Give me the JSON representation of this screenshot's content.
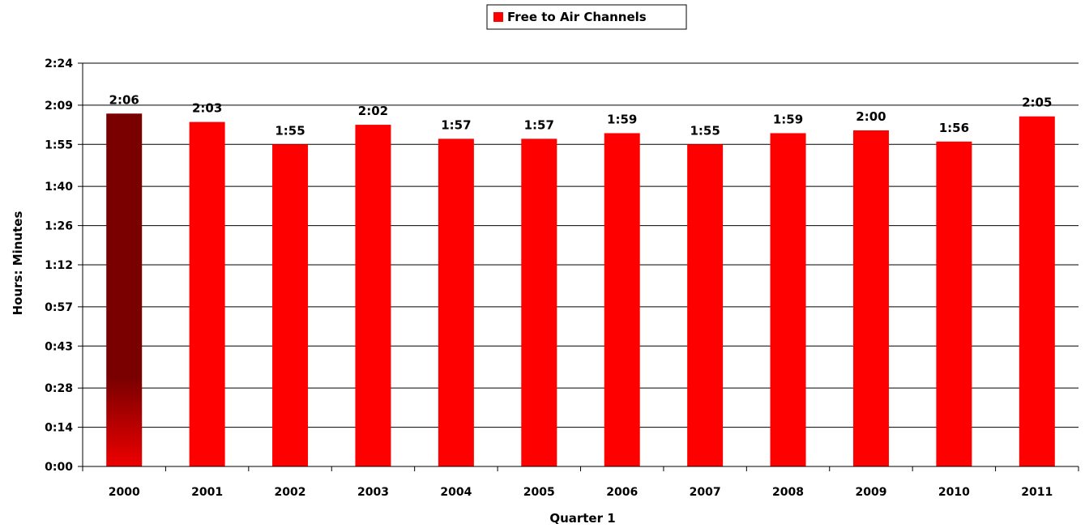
{
  "chart_data": {
    "type": "bar",
    "title": "",
    "xlabel": "Quarter 1",
    "ylabel": "Hours: Minutes",
    "legend": {
      "label": "Free to Air Channels",
      "position": "top-center"
    },
    "categories": [
      "2000",
      "2001",
      "2002",
      "2003",
      "2004",
      "2005",
      "2006",
      "2007",
      "2008",
      "2009",
      "2010",
      "2011"
    ],
    "series": [
      {
        "name": "Free to Air Channels",
        "values_minutes": [
          126,
          123,
          115,
          122,
          117,
          117,
          119,
          115,
          119,
          120,
          116,
          125
        ],
        "labels": [
          "2:06",
          "2:03",
          "1:55",
          "2:02",
          "1:57",
          "1:57",
          "1:59",
          "1:55",
          "1:59",
          "2:00",
          "1:56",
          "2:05"
        ]
      }
    ],
    "ylim_minutes": [
      0,
      144
    ],
    "y_ticks_minutes": [
      0,
      14,
      28,
      43,
      57,
      72,
      86,
      100,
      115,
      129,
      144
    ],
    "y_tick_labels": [
      "0:00",
      "0:14",
      "0:28",
      "0:43",
      "0:57",
      "1:12",
      "1:26",
      "1:40",
      "1:55",
      "2:09",
      "2:24"
    ],
    "grid": true,
    "colors": {
      "bar": "#ff0000",
      "highlight_bar_top": "#7a0000",
      "highlight_bar_bottom": "#ee0000"
    },
    "highlight_category": "2000"
  }
}
